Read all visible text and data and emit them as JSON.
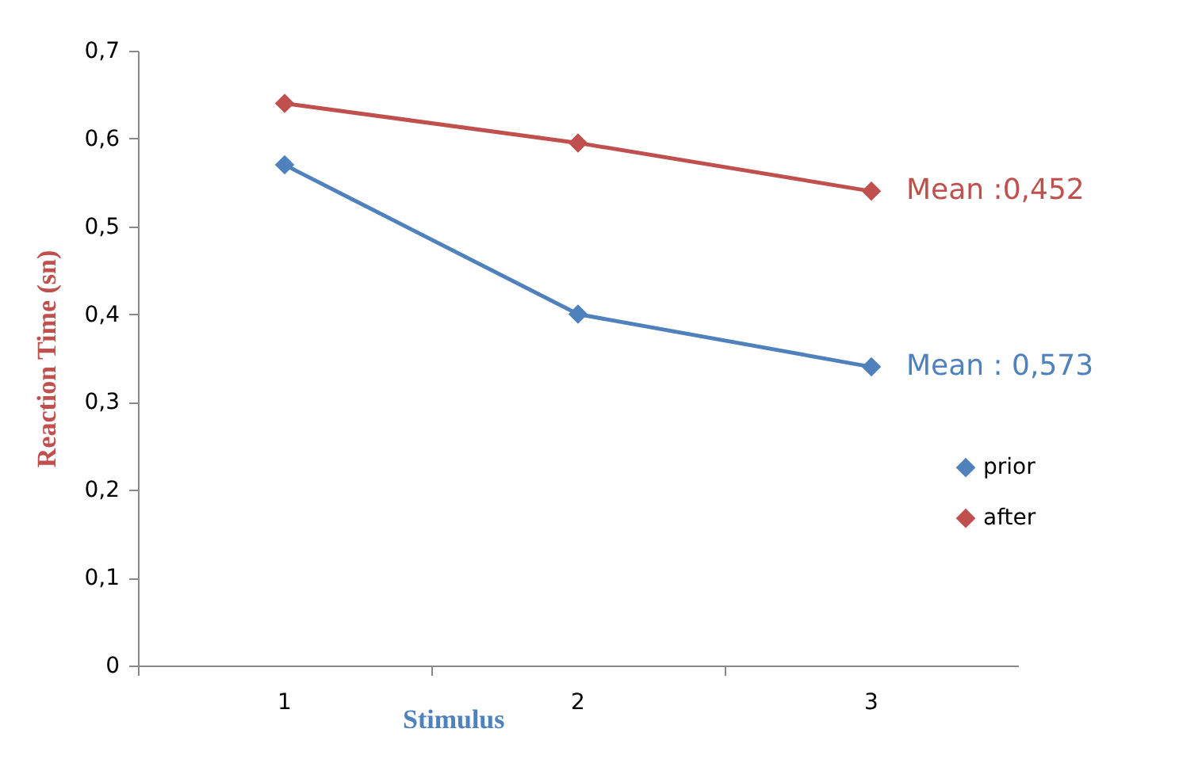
{
  "chart_data": {
    "type": "line",
    "xlabel": "Stimulus",
    "ylabel": "Reaction Time (sn)",
    "categories": [
      "1",
      "2",
      "3"
    ],
    "series": [
      {
        "name": "prior",
        "color": "#4f81bd",
        "values": [
          0.57,
          0.4,
          0.34
        ]
      },
      {
        "name": "after",
        "color": "#c0504d",
        "values": [
          0.64,
          0.595,
          0.54
        ]
      }
    ],
    "ylim": [
      0,
      0.7
    ],
    "yticks": [
      0,
      {
        "value": 0.1,
        "label": "0,1"
      },
      {
        "value": 0.2,
        "label": "0,2"
      },
      {
        "value": 0.3,
        "label": "0,3"
      },
      {
        "value": 0.4,
        "label": "0,4"
      },
      {
        "value": 0.5,
        "label": "0,5"
      },
      {
        "value": 0.6,
        "label": "0,6"
      },
      {
        "value": 0.7,
        "label": "0,7"
      }
    ],
    "annotations": [
      {
        "text": "Mean :0,452",
        "x": "3",
        "y": 0.54
      },
      {
        "text": "Mean : 0,573",
        "x": "3",
        "y": 0.34
      }
    ],
    "grid": false,
    "legend": "right",
    "marker": "diamond",
    "line_style": "solid"
  }
}
